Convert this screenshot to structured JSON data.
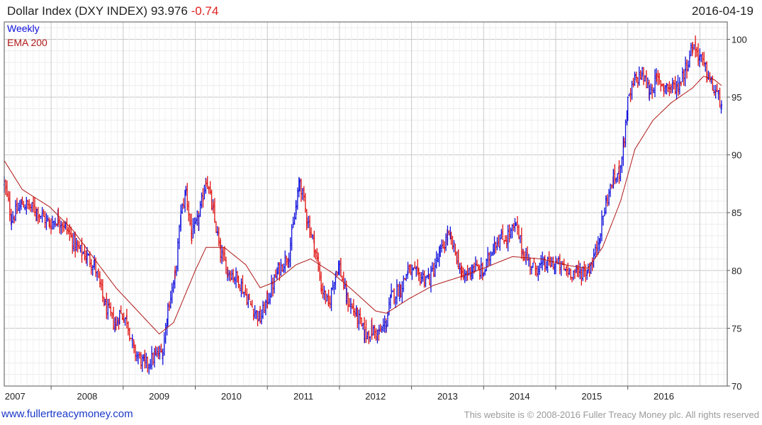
{
  "header": {
    "name": "Dollar Index (DXY INDEX)",
    "last": "93.976",
    "change": "-0.74",
    "date": "2016-04-19"
  },
  "footer": {
    "site": "www.fullertreacymoney.com",
    "copyright": "This website is © 2008-2016 Fuller Treacy Money plc. All rights reserved"
  },
  "colors": {
    "up": "#1010dd",
    "down": "#e01010",
    "ema": "#b01818",
    "grid": "#d8d8d8"
  },
  "chart_data": {
    "type": "candlestick",
    "frequency_label": "Weekly",
    "grid": true,
    "legend_position": "top-left",
    "xlim": [
      2006.35,
      2016.38
    ],
    "ylim": [
      70,
      101.5
    ],
    "y_ticks": [
      70,
      75,
      80,
      85,
      90,
      95,
      100
    ],
    "x_ticks": [
      "2007",
      "2008",
      "2009",
      "2010",
      "2011",
      "2012",
      "2013",
      "2014",
      "2015",
      "2016"
    ],
    "price": {
      "name": "Weekly",
      "anchors": [
        [
          2006.35,
          87.5
        ],
        [
          2006.45,
          84.5
        ],
        [
          2006.6,
          85.8
        ],
        [
          2006.8,
          85.2
        ],
        [
          2006.98,
          84.0
        ],
        [
          2007.1,
          84.5
        ],
        [
          2007.2,
          83.8
        ],
        [
          2007.35,
          82.0
        ],
        [
          2007.5,
          81.2
        ],
        [
          2007.6,
          80.5
        ],
        [
          2007.75,
          76.9
        ],
        [
          2007.9,
          75.2
        ],
        [
          2007.95,
          76.3
        ],
        [
          2008.05,
          75.8
        ],
        [
          2008.15,
          73.0
        ],
        [
          2008.3,
          71.8
        ],
        [
          2008.45,
          72.6
        ],
        [
          2008.55,
          73.0
        ],
        [
          2008.62,
          76.8
        ],
        [
          2008.72,
          79.5
        ],
        [
          2008.8,
          84.8
        ],
        [
          2008.87,
          86.9
        ],
        [
          2008.95,
          83.0
        ],
        [
          2009.05,
          84.5
        ],
        [
          2009.15,
          88.0
        ],
        [
          2009.25,
          85.0
        ],
        [
          2009.35,
          81.5
        ],
        [
          2009.45,
          80.0
        ],
        [
          2009.6,
          79.2
        ],
        [
          2009.75,
          77.2
        ],
        [
          2009.9,
          75.8
        ],
        [
          2010.0,
          77.5
        ],
        [
          2010.15,
          80.0
        ],
        [
          2010.3,
          81.5
        ],
        [
          2010.4,
          85.5
        ],
        [
          2010.45,
          87.8
        ],
        [
          2010.55,
          84.5
        ],
        [
          2010.65,
          82.3
        ],
        [
          2010.75,
          78.5
        ],
        [
          2010.85,
          77.0
        ],
        [
          2010.95,
          80.0
        ],
        [
          2011.0,
          80.3
        ],
        [
          2011.1,
          77.5
        ],
        [
          2011.25,
          76.0
        ],
        [
          2011.35,
          74.5
        ],
        [
          2011.45,
          74.8
        ],
        [
          2011.55,
          74.5
        ],
        [
          2011.65,
          75.5
        ],
        [
          2011.72,
          77.8
        ],
        [
          2011.85,
          78.5
        ],
        [
          2011.95,
          80.0
        ],
        [
          2012.1,
          79.5
        ],
        [
          2012.25,
          79.3
        ],
        [
          2012.4,
          81.5
        ],
        [
          2012.5,
          83.0
        ],
        [
          2012.55,
          82.5
        ],
        [
          2012.65,
          80.8
        ],
        [
          2012.7,
          79.3
        ],
        [
          2012.85,
          80.3
        ],
        [
          2013.0,
          79.8
        ],
        [
          2013.15,
          82.5
        ],
        [
          2013.3,
          82.8
        ],
        [
          2013.45,
          83.8
        ],
        [
          2013.55,
          81.5
        ],
        [
          2013.7,
          80.2
        ],
        [
          2013.85,
          80.5
        ],
        [
          2014.0,
          80.6
        ],
        [
          2014.15,
          80.0
        ],
        [
          2014.3,
          79.8
        ],
        [
          2014.45,
          80.0
        ],
        [
          2014.55,
          81.5
        ],
        [
          2014.62,
          83.5
        ],
        [
          2014.7,
          86.0
        ],
        [
          2014.8,
          87.8
        ],
        [
          2014.88,
          88.5
        ],
        [
          2014.95,
          91.5
        ],
        [
          2015.0,
          94.5
        ],
        [
          2015.1,
          96.5
        ],
        [
          2015.2,
          97.0
        ],
        [
          2015.3,
          95.5
        ],
        [
          2015.4,
          96.5
        ],
        [
          2015.5,
          96.0
        ],
        [
          2015.6,
          95.8
        ],
        [
          2015.7,
          96.0
        ],
        [
          2015.8,
          97.5
        ],
        [
          2015.9,
          99.5
        ],
        [
          2016.0,
          98.5
        ],
        [
          2016.1,
          97.0
        ],
        [
          2016.2,
          95.5
        ],
        [
          2016.3,
          94.5
        ],
        [
          2016.3,
          93.976
        ]
      ]
    },
    "ema": {
      "name": "EMA 200",
      "anchors": [
        [
          2006.35,
          89.5
        ],
        [
          2006.6,
          87.0
        ],
        [
          2006.98,
          85.5
        ],
        [
          2007.3,
          83.5
        ],
        [
          2007.6,
          81.0
        ],
        [
          2007.9,
          78.5
        ],
        [
          2008.2,
          76.5
        ],
        [
          2008.5,
          74.5
        ],
        [
          2008.7,
          75.5
        ],
        [
          2009.0,
          80.0
        ],
        [
          2009.15,
          82.0
        ],
        [
          2009.4,
          82.0
        ],
        [
          2009.7,
          80.5
        ],
        [
          2009.9,
          78.5
        ],
        [
          2010.1,
          79.0
        ],
        [
          2010.4,
          80.5
        ],
        [
          2010.6,
          81.0
        ],
        [
          2010.9,
          79.8
        ],
        [
          2011.2,
          78.2
        ],
        [
          2011.5,
          76.5
        ],
        [
          2011.65,
          76.3
        ],
        [
          2011.95,
          77.5
        ],
        [
          2012.3,
          78.7
        ],
        [
          2012.7,
          79.5
        ],
        [
          2013.0,
          80.2
        ],
        [
          2013.4,
          81.2
        ],
        [
          2013.8,
          81.0
        ],
        [
          2014.2,
          80.4
        ],
        [
          2014.45,
          80.2
        ],
        [
          2014.65,
          82.0
        ],
        [
          2014.9,
          86.0
        ],
        [
          2015.1,
          90.5
        ],
        [
          2015.35,
          93.0
        ],
        [
          2015.6,
          94.5
        ],
        [
          2015.9,
          95.8
        ],
        [
          2016.05,
          96.8
        ],
        [
          2016.2,
          96.5
        ],
        [
          2016.3,
          96.0
        ]
      ]
    }
  }
}
